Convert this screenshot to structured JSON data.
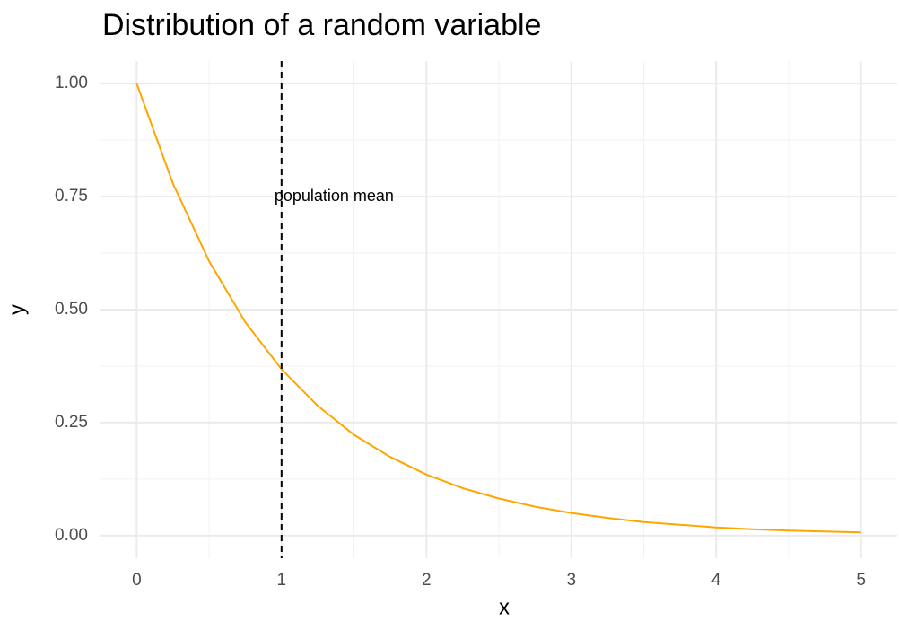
{
  "chart_data": {
    "type": "line",
    "title": "Distribution of a random variable",
    "xlabel": "x",
    "ylabel": "y",
    "x": [
      0,
      0.25,
      0.5,
      0.75,
      1,
      1.25,
      1.5,
      1.75,
      2,
      2.25,
      2.5,
      2.75,
      3,
      3.25,
      3.5,
      3.75,
      4,
      4.25,
      4.5,
      4.75,
      5
    ],
    "series": [
      {
        "color": "#FFA500",
        "values": [
          1,
          0.779,
          0.607,
          0.472,
          0.368,
          0.287,
          0.223,
          0.174,
          0.135,
          0.105,
          0.082,
          0.064,
          0.05,
          0.039,
          0.03,
          0.024,
          0.018,
          0.014,
          0.011,
          0.009,
          0.007
        ]
      }
    ],
    "xlim": [
      -0.25,
      5.25
    ],
    "ylim": [
      -0.05,
      1.05
    ],
    "xticks": [
      0,
      1,
      2,
      3,
      4,
      5
    ],
    "yticks": [
      {
        "value": 0,
        "label": "0.00"
      },
      {
        "value": 0.25,
        "label": "0.25"
      },
      {
        "value": 0.5,
        "label": "0.50"
      },
      {
        "value": 0.75,
        "label": "0.75"
      },
      {
        "value": 1,
        "label": "1.00"
      }
    ],
    "xminor": [
      0.5,
      1.5,
      2.5,
      3.5,
      4.5
    ],
    "yminor": [
      0.125,
      0.375,
      0.625,
      0.875
    ],
    "grid": true,
    "vline": {
      "x": 1
    },
    "annotation": {
      "text": "population mean",
      "x": 1,
      "y": 0.75
    }
  }
}
